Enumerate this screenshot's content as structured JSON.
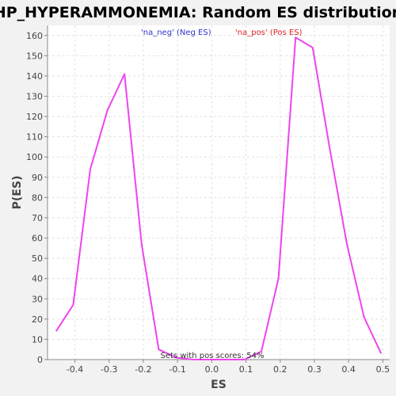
{
  "chart_data": {
    "type": "line",
    "title": "HP_HYPERAMMONEMIA: Random ES distribution",
    "xlabel": "ES",
    "ylabel": "P(ES)",
    "xlim": [
      -0.48,
      0.52
    ],
    "ylim": [
      0,
      165
    ],
    "xticks": [
      -0.4,
      -0.3,
      -0.2,
      -0.1,
      0.0,
      0.1,
      0.2,
      0.3,
      0.4,
      0.5
    ],
    "xtick_labels": [
      "-0.4",
      "-0.3",
      "-0.2",
      "-0.1",
      "0.0",
      "0.1",
      "0.2",
      "0.3",
      "0.4",
      "0.5"
    ],
    "yticks": [
      0,
      10,
      20,
      30,
      40,
      50,
      60,
      70,
      80,
      90,
      100,
      110,
      120,
      130,
      140,
      150,
      160
    ],
    "ytick_labels": [
      "0",
      "10",
      "20",
      "30",
      "40",
      "50",
      "60",
      "70",
      "80",
      "90",
      "100",
      "110",
      "120",
      "130",
      "140",
      "150",
      "160"
    ],
    "grid": true,
    "legend": [
      {
        "label": "'na_neg' (Neg ES)",
        "color": "#3333cc"
      },
      {
        "label": "'na_pos' (Pos ES)",
        "color": "#dd2222"
      }
    ],
    "annotation": "Sets with pos scores: 54%",
    "series": [
      {
        "color": "#ee44ee",
        "x": [
          -0.455,
          -0.405,
          -0.355,
          -0.305,
          -0.255,
          -0.205,
          -0.155,
          -0.105,
          -0.055,
          -0.005,
          0.045,
          0.095,
          0.145,
          0.195,
          0.245,
          0.295,
          0.345,
          0.395,
          0.445,
          0.495
        ],
        "y": [
          14,
          27,
          94,
          123,
          141,
          57,
          5,
          1,
          0,
          0,
          0,
          0,
          4,
          40,
          159,
          154,
          104,
          57,
          21,
          3
        ]
      }
    ]
  }
}
